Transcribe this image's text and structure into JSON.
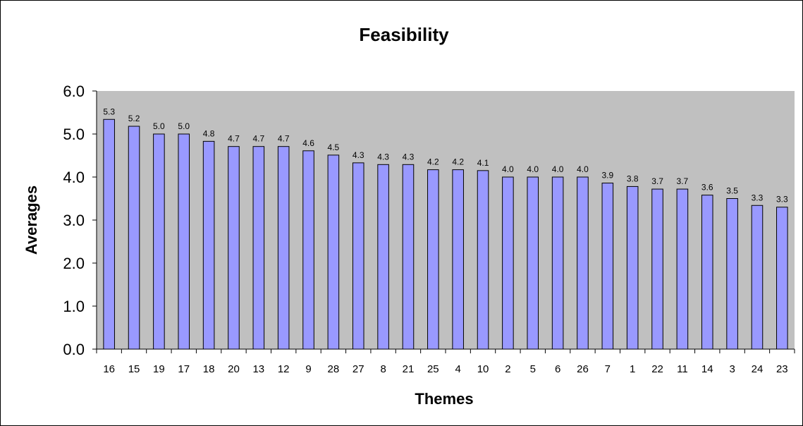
{
  "chart_data": {
    "type": "bar",
    "title": "Feasibility",
    "xlabel": "Themes",
    "ylabel": "Averages",
    "ylim": [
      0,
      6
    ],
    "yticks": [
      "0.0",
      "1.0",
      "2.0",
      "3.0",
      "4.0",
      "5.0",
      "6.0"
    ],
    "categories": [
      "16",
      "15",
      "19",
      "17",
      "18",
      "20",
      "13",
      "12",
      "9",
      "28",
      "27",
      "8",
      "21",
      "25",
      "4",
      "10",
      "2",
      "5",
      "6",
      "26",
      "7",
      "1",
      "22",
      "11",
      "14",
      "3",
      "24",
      "23"
    ],
    "values": [
      5.34,
      5.18,
      5.0,
      5.0,
      4.83,
      4.71,
      4.71,
      4.71,
      4.61,
      4.51,
      4.33,
      4.29,
      4.29,
      4.17,
      4.17,
      4.15,
      4.0,
      4.0,
      4.0,
      4.0,
      3.86,
      3.78,
      3.72,
      3.72,
      3.58,
      3.5,
      3.34,
      3.3
    ],
    "data_labels": [
      "5.3",
      "5.2",
      "5.0",
      "5.0",
      "4.8",
      "4.7",
      "4.7",
      "4.7",
      "4.6",
      "4.5",
      "4.3",
      "4.3",
      "4.3",
      "4.2",
      "4.2",
      "4.1",
      "4.0",
      "4.0",
      "4.0",
      "4.0",
      "3.9",
      "3.8",
      "3.7",
      "3.7",
      "3.6",
      "3.5",
      "3.3",
      "3.3"
    ],
    "grid": false,
    "legend": "none"
  },
  "colors": {
    "plot_background": "#c0c0c0",
    "bar_fill": "#9999ff",
    "bar_stroke": "#000000",
    "text": "#000000"
  }
}
